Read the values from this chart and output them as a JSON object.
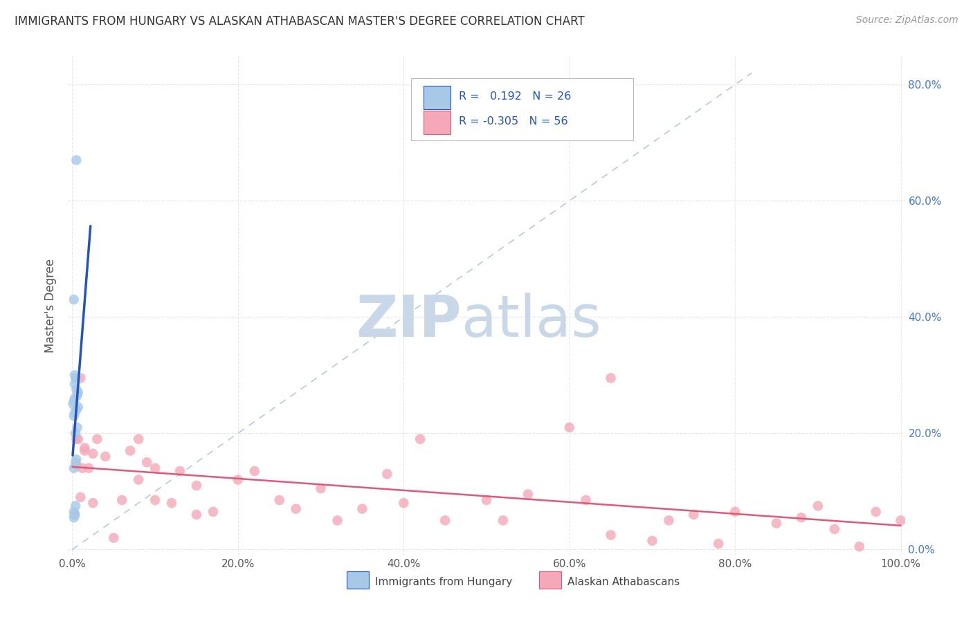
{
  "title": "IMMIGRANTS FROM HUNGARY VS ALASKAN ATHABASCAN MASTER'S DEGREE CORRELATION CHART",
  "source": "Source: ZipAtlas.com",
  "ylabel": "Master's Degree",
  "legend_label1": "Immigrants from Hungary",
  "legend_label2": "Alaskan Athabascans",
  "R1": 0.192,
  "N1": 26,
  "R2": -0.305,
  "N2": 56,
  "xlim": [
    -0.005,
    1.005
  ],
  "ylim": [
    -0.01,
    0.85
  ],
  "xticks": [
    0.0,
    0.2,
    0.4,
    0.6,
    0.8,
    1.0
  ],
  "yticks": [
    0.0,
    0.2,
    0.4,
    0.6,
    0.8
  ],
  "xticklabels": [
    "0.0%",
    "20.0%",
    "40.0%",
    "60.0%",
    "80.0%",
    "100.0%"
  ],
  "right_yticklabels": [
    "0.0%",
    "20.0%",
    "40.0%",
    "60.0%",
    "80.0%"
  ],
  "color_blue": "#a8c8e8",
  "color_blue_line": "#2255bb",
  "color_pink": "#f4a8b8",
  "color_pink_line": "#e05878",
  "blue_x": [
    0.005,
    0.002,
    0.003,
    0.004,
    0.003,
    0.005,
    0.007,
    0.006,
    0.003,
    0.002,
    0.001,
    0.007,
    0.005,
    0.003,
    0.002,
    0.005,
    0.004,
    0.002,
    0.003,
    0.004,
    0.002,
    0.003,
    0.006,
    0.004,
    0.002,
    0.003
  ],
  "blue_y": [
    0.67,
    0.43,
    0.3,
    0.295,
    0.285,
    0.275,
    0.27,
    0.265,
    0.26,
    0.255,
    0.25,
    0.245,
    0.24,
    0.235,
    0.23,
    0.155,
    0.15,
    0.14,
    0.06,
    0.075,
    0.065,
    0.06,
    0.21,
    0.2,
    0.055,
    0.06
  ],
  "pink_x": [
    0.005,
    0.007,
    0.01,
    0.012,
    0.015,
    0.02,
    0.025,
    0.03,
    0.05,
    0.07,
    0.08,
    0.09,
    0.1,
    0.12,
    0.13,
    0.15,
    0.17,
    0.2,
    0.22,
    0.25,
    0.27,
    0.3,
    0.32,
    0.35,
    0.38,
    0.4,
    0.42,
    0.45,
    0.5,
    0.52,
    0.55,
    0.6,
    0.62,
    0.65,
    0.7,
    0.72,
    0.75,
    0.78,
    0.8,
    0.85,
    0.88,
    0.9,
    0.92,
    0.95,
    0.97,
    1.0,
    0.005,
    0.01,
    0.015,
    0.025,
    0.04,
    0.06,
    0.08,
    0.1,
    0.15,
    0.65
  ],
  "pink_y": [
    0.19,
    0.19,
    0.295,
    0.14,
    0.17,
    0.14,
    0.08,
    0.19,
    0.02,
    0.17,
    0.12,
    0.15,
    0.14,
    0.08,
    0.135,
    0.11,
    0.065,
    0.12,
    0.135,
    0.085,
    0.07,
    0.105,
    0.05,
    0.07,
    0.13,
    0.08,
    0.19,
    0.05,
    0.085,
    0.05,
    0.095,
    0.21,
    0.085,
    0.025,
    0.015,
    0.05,
    0.06,
    0.01,
    0.065,
    0.045,
    0.055,
    0.075,
    0.035,
    0.005,
    0.065,
    0.05,
    0.145,
    0.09,
    0.175,
    0.165,
    0.16,
    0.085,
    0.19,
    0.085,
    0.06,
    0.295
  ],
  "background_color": "#ffffff",
  "grid_color": "#e0e4ee",
  "watermark_zip": "ZIP",
  "watermark_atlas": "atlas",
  "watermark_color_zip": "#c8d8e8",
  "watermark_color_atlas": "#c8d8e8"
}
